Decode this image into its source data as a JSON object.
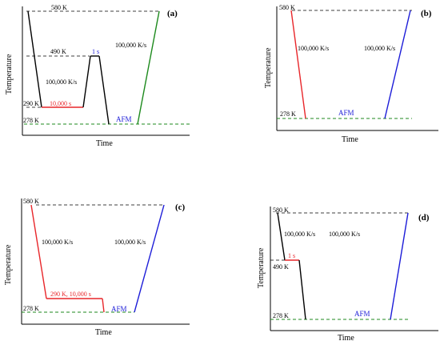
{
  "colors": {
    "black": "#000000",
    "red": "#e8262a",
    "green": "#1d8a1d",
    "blue": "#1c1cd8",
    "green_dash": "#2e9a2e"
  },
  "panels": [
    {
      "tag": "(a)",
      "ylabel": "Temperature",
      "xlabel": "Time",
      "labels": {
        "t_580": "580 K",
        "t_490": "490 K",
        "t_290": "290 K",
        "t_278": "278 K",
        "hold_290": "10,000 s",
        "hold_490": "1 s",
        "rate_left": "100,000 K/s",
        "rate_right": "100,000 K/s",
        "afm": "AFM"
      }
    },
    {
      "tag": "(b)",
      "ylabel": "Temperature",
      "xlabel": "Time",
      "labels": {
        "t_580": "580 K",
        "t_278": "278 K",
        "rate_left": "100,000 K/s",
        "rate_right": "100,000 K/s",
        "afm": "AFM"
      }
    },
    {
      "tag": "(c)",
      "ylabel": "Temperature",
      "xlabel": "Time",
      "labels": {
        "t_580": "580 K",
        "t_278": "278 K",
        "hold_290": "290 K, 10,000 s",
        "rate_left": "100,000 K/s",
        "rate_right": "100,000 K/s",
        "afm": "AFM"
      }
    },
    {
      "tag": "(d)",
      "ylabel": "Temperature",
      "xlabel": "Time",
      "labels": {
        "t_580": "580 K",
        "t_490": "490 K",
        "t_278": "278 K",
        "hold_490": "1 s",
        "rate_left": "100,000 K/s",
        "rate_right": "100,000 K/s",
        "afm": "AFM"
      }
    }
  ]
}
